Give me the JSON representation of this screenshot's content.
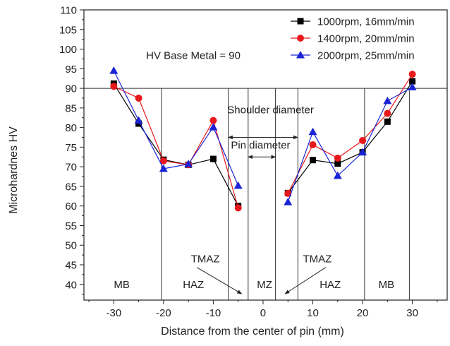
{
  "chart_data": {
    "type": "line",
    "title": "",
    "xlabel": "Distance from the center of pin (mm)",
    "ylabel": "Microhardnes HV",
    "xlim": [
      -36,
      37
    ],
    "ylim": [
      36,
      110
    ],
    "xticks": [
      -30,
      -20,
      -10,
      0,
      10,
      20,
      30
    ],
    "yticks": [
      40,
      45,
      50,
      55,
      60,
      65,
      70,
      75,
      80,
      85,
      90,
      95,
      100,
      105,
      110
    ],
    "legend_position": "top-right",
    "series": [
      {
        "name": "1000rpm, 16mm/min",
        "color": "#000000",
        "marker": "square",
        "points": [
          [
            -30,
            91.2
          ],
          [
            -25,
            81.0
          ],
          [
            -20,
            71.8
          ],
          [
            -15,
            70.5
          ],
          [
            -10,
            72.0
          ],
          [
            -5,
            60.0
          ],
          [
            5,
            63.3
          ],
          [
            10,
            71.7
          ],
          [
            15,
            70.8
          ],
          [
            20,
            73.7
          ],
          [
            25,
            81.5
          ],
          [
            30,
            91.8
          ]
        ]
      },
      {
        "name": "1400rpm, 20mm/min",
        "color": "#e8191c",
        "marker": "circle",
        "points": [
          [
            -30,
            90.5
          ],
          [
            -25,
            87.5
          ],
          [
            -20,
            71.5
          ],
          [
            -15,
            70.5
          ],
          [
            -10,
            81.8
          ],
          [
            -5,
            59.5
          ],
          [
            5,
            63.2
          ],
          [
            10,
            75.6
          ],
          [
            15,
            72.2
          ],
          [
            20,
            76.7
          ],
          [
            25,
            83.6
          ],
          [
            30,
            93.6
          ]
        ]
      },
      {
        "name": "2000rpm, 25mm/min",
        "color": "#1a23d6",
        "marker": "triangle",
        "points": [
          [
            -30,
            94.5
          ],
          [
            -25,
            81.8
          ],
          [
            -20,
            69.5
          ],
          [
            -15,
            70.7
          ],
          [
            -10,
            80.1
          ],
          [
            -5,
            65.2
          ],
          [
            5,
            61.0
          ],
          [
            10,
            78.9
          ],
          [
            15,
            67.7
          ],
          [
            20,
            73.7
          ],
          [
            25,
            86.8
          ],
          [
            30,
            90.3
          ]
        ]
      }
    ],
    "reference_line": {
      "y": 90,
      "label": "HV Base Metal = 90"
    },
    "zone_boundaries_x": [
      -20.4,
      -7,
      -3,
      2.5,
      7,
      20.4,
      29.4
    ],
    "zone_labels": [
      {
        "text": "MB",
        "x": -28.4,
        "y": 40
      },
      {
        "text": "HAZ",
        "x": -14,
        "y": 40
      },
      {
        "text": "MZ",
        "x": 0.3,
        "y": 40
      },
      {
        "text": "HAZ",
        "x": 13.5,
        "y": 40
      },
      {
        "text": "MB",
        "x": 24.8,
        "y": 40
      }
    ],
    "annotations": [
      {
        "text": "TMAZ",
        "x": -11.6,
        "y": 46.5,
        "arrow_to": [
          -4.3,
          37.6
        ]
      },
      {
        "text": "TMAZ",
        "x": 10.9,
        "y": 46.5,
        "arrow_to": [
          4.4,
          37.6
        ]
      },
      {
        "text": "Shoulder diameter",
        "x": 1.5,
        "y": 84.5,
        "span": [
          -7,
          7
        ],
        "span_y": 77.5
      },
      {
        "text": "Pin diameter",
        "x": -0.5,
        "y": 75.5,
        "span": [
          -3,
          2.5
        ],
        "span_y": 72.5
      }
    ]
  }
}
